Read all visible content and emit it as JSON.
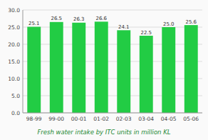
{
  "chart_data": {
    "type": "bar",
    "title": "Fresh water intake by ITC units in million KL",
    "categories": [
      "98-99",
      "99-00",
      "00-01",
      "01-02",
      "02-03",
      "03-04",
      "04-05",
      "05-06"
    ],
    "values": [
      25.1,
      26.5,
      26.3,
      26.6,
      24.1,
      22.5,
      25.0,
      25.6
    ],
    "value_labels": [
      "25.1",
      "26.5",
      "26.3",
      "26.6",
      "24.1",
      "22.5",
      "25.0",
      "25.6"
    ],
    "data_labels": true,
    "color": "#22cc44",
    "ylim": [
      0,
      30
    ],
    "yticks": [
      {
        "value": 0,
        "label": "0.0"
      },
      {
        "value": 5,
        "label": "5.0"
      },
      {
        "value": 10,
        "label": "10.0"
      },
      {
        "value": 15,
        "label": "15.0"
      },
      {
        "value": 20,
        "label": "20.0"
      },
      {
        "value": 25,
        "label": "25.0"
      },
      {
        "value": 30,
        "label": "30.0"
      }
    ],
    "grid": true
  }
}
